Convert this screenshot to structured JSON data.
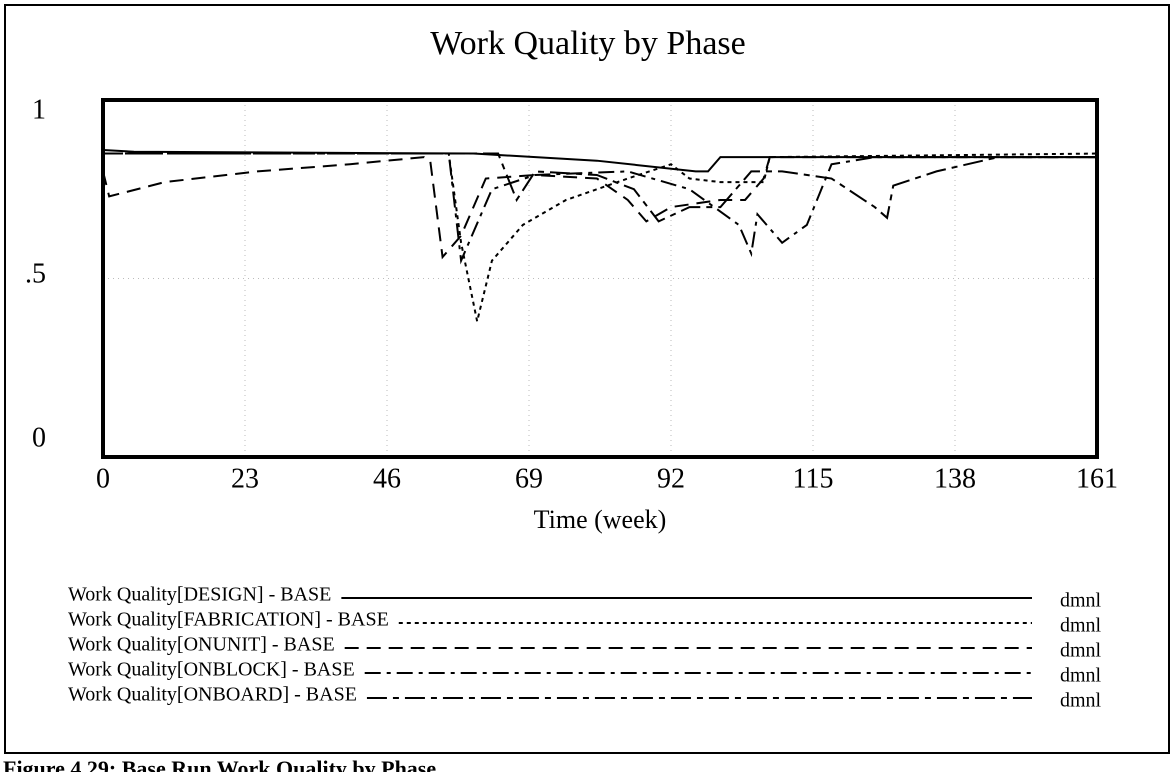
{
  "chart_data": {
    "type": "line",
    "title": "Work Quality by Phase",
    "xlabel": "Time (week)",
    "caption": "Figure 4.29: Base Run Work Quality by Phase",
    "xlim": [
      0,
      161
    ],
    "xticks": [
      0,
      23,
      46,
      69,
      92,
      115,
      138,
      161
    ],
    "ylim": [
      0,
      1
    ],
    "yticks": [
      0,
      {
        "value": 0.5,
        "label": ".5"
      },
      1
    ],
    "grid": true,
    "series": [
      {
        "name": "Work Quality[DESIGN] - BASE",
        "unit": "dmnl",
        "color": "#000000",
        "dash": "none",
        "x": [
          0,
          5,
          60,
          80,
          96,
          98,
          100,
          161
        ],
        "values": [
          0.86,
          0.855,
          0.85,
          0.83,
          0.8,
          0.8,
          0.84,
          0.84
        ]
      },
      {
        "name": "Work Quality[FABRICATION] - BASE",
        "unit": "dmnl",
        "color": "#000000",
        "dash": "4 4",
        "x": [
          0,
          56,
          58,
          60.6,
          63,
          68,
          75,
          85,
          92,
          95,
          100,
          107,
          108,
          161
        ],
        "values": [
          0.85,
          0.85,
          0.6,
          0.38,
          0.55,
          0.65,
          0.72,
          0.78,
          0.82,
          0.78,
          0.77,
          0.77,
          0.84,
          0.85
        ]
      },
      {
        "name": "Work Quality[ONUNIT] - BASE",
        "unit": "dmnl",
        "color": "#000000",
        "dash": "14 8",
        "x": [
          0,
          1,
          10,
          25,
          40,
          52,
          53,
          55,
          58,
          62,
          70,
          80,
          85,
          88,
          92,
          100,
          104,
          107,
          108,
          120,
          161
        ],
        "values": [
          0.8,
          0.73,
          0.77,
          0.8,
          0.82,
          0.84,
          0.83,
          0.56,
          0.62,
          0.78,
          0.79,
          0.78,
          0.72,
          0.66,
          0.7,
          0.72,
          0.72,
          0.78,
          0.84,
          0.84,
          0.84
        ]
      },
      {
        "name": "Work Quality[ONBLOCK] - BASE",
        "unit": "dmnl",
        "color": "#000000",
        "dash": "16 6 4 6",
        "x": [
          0,
          56,
          58,
          63,
          70,
          85,
          95,
          103,
          105,
          106,
          110,
          114,
          118,
          125,
          161
        ],
        "values": [
          0.85,
          0.85,
          0.55,
          0.75,
          0.79,
          0.8,
          0.75,
          0.65,
          0.57,
          0.68,
          0.6,
          0.65,
          0.82,
          0.84,
          0.84
        ]
      },
      {
        "name": "Work Quality[ONBOARD] - BASE",
        "unit": "dmnl",
        "color": "#000000",
        "dash": "20 6 6 6",
        "x": [
          0,
          64,
          67,
          70,
          80,
          86,
          90,
          95,
          100,
          105,
          110,
          118,
          125,
          127,
          128,
          135,
          145,
          161
        ],
        "values": [
          0.85,
          0.85,
          0.72,
          0.8,
          0.79,
          0.75,
          0.66,
          0.7,
          0.7,
          0.8,
          0.8,
          0.78,
          0.7,
          0.67,
          0.76,
          0.8,
          0.84,
          0.84
        ]
      }
    ]
  }
}
